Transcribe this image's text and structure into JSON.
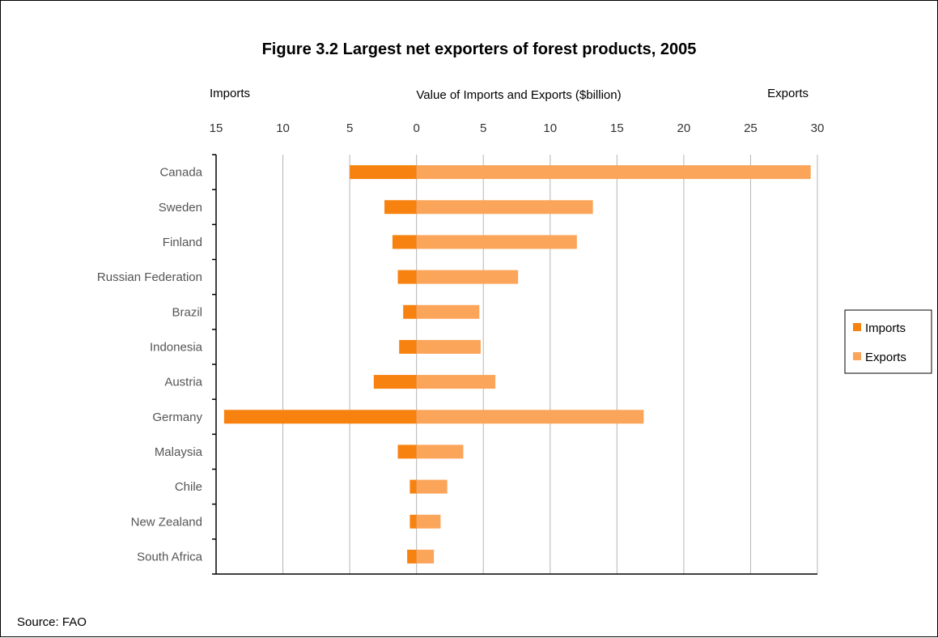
{
  "chart_data": {
    "type": "bar",
    "orientation": "horizontal",
    "title": "Figure 3.2  Largest net exporters of forest products, 2005",
    "xlabel": "Value of Imports and Exports ($billion)",
    "left_header": "Imports",
    "right_header": "Exports",
    "x_ticks": [
      {
        "value": -15,
        "label": "15"
      },
      {
        "value": -10,
        "label": "10"
      },
      {
        "value": -5,
        "label": "5"
      },
      {
        "value": 0,
        "label": "0"
      },
      {
        "value": 5,
        "label": "5"
      },
      {
        "value": 10,
        "label": "10"
      },
      {
        "value": 15,
        "label": "15"
      },
      {
        "value": 20,
        "label": "20"
      },
      {
        "value": 25,
        "label": "25"
      },
      {
        "value": 30,
        "label": "30"
      }
    ],
    "xlim": [
      -15,
      30
    ],
    "grid": true,
    "legend_position": "right",
    "categories": [
      "Canada",
      "Sweden",
      "Finland",
      "Russian Federation",
      "Brazil",
      "Indonesia",
      "Austria",
      "Germany",
      "Malaysia",
      "Chile",
      "New Zealand",
      "South Africa"
    ],
    "series": [
      {
        "name": "Imports",
        "color": "#f7820f",
        "values": [
          5.0,
          2.4,
          1.8,
          1.4,
          1.0,
          1.3,
          3.2,
          14.4,
          1.4,
          0.5,
          0.5,
          0.7
        ]
      },
      {
        "name": "Exports",
        "color": "#fba55a",
        "values": [
          29.5,
          13.2,
          12.0,
          7.6,
          4.7,
          4.8,
          5.9,
          17.0,
          3.5,
          2.3,
          1.8,
          1.3
        ]
      }
    ],
    "source": "Source:  FAO"
  }
}
